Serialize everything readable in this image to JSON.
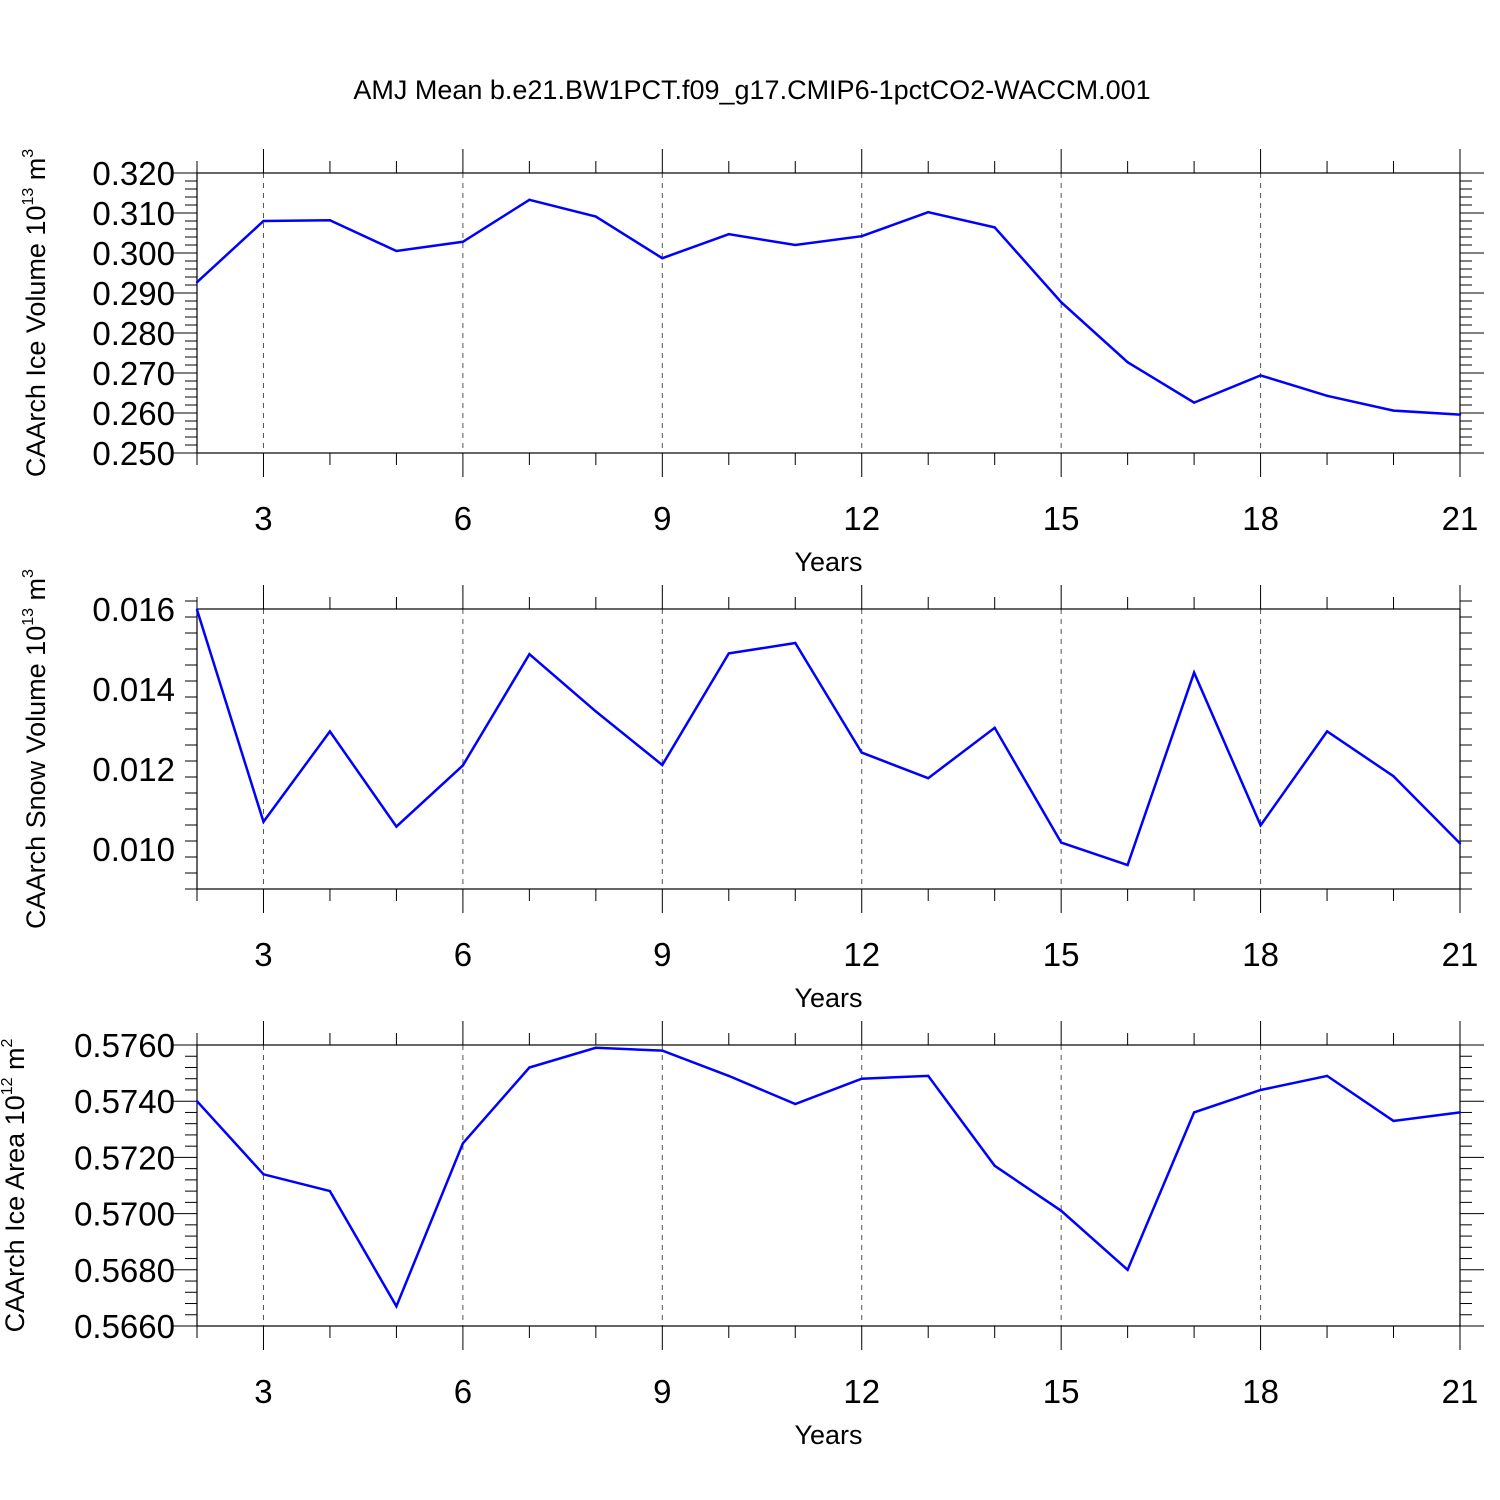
{
  "title": "AMJ Mean b.e21.BW1PCT.f09_g17.CMIP6-1pctCO2-WACCM.001",
  "colors": {
    "series": "#0000ff",
    "axis": "#000000",
    "grid": "#555555"
  },
  "chart_data": [
    {
      "type": "line",
      "ylabel_text": "CAArch Ice Volume 10",
      "ylabel_exp": "13",
      "ylabel_unit": " m",
      "ylabel_unit_exp": "3",
      "xlabel": "Years",
      "xlim": [
        2,
        21
      ],
      "ylim": [
        0.25,
        0.32
      ],
      "x_ticks": [
        "3",
        "6",
        "9",
        "12",
        "15",
        "18",
        "21"
      ],
      "y_ticks": [
        "0.250",
        "0.260",
        "0.270",
        "0.280",
        "0.290",
        "0.300",
        "0.310",
        "0.320"
      ],
      "grid": "dashed vertical at x ticks",
      "x": [
        2,
        3,
        4,
        5,
        6,
        7,
        8,
        9,
        10,
        11,
        12,
        13,
        14,
        15,
        16,
        17,
        18,
        19,
        20,
        21
      ],
      "y": [
        0.2927,
        0.308,
        0.3082,
        0.3005,
        0.3028,
        0.3133,
        0.3091,
        0.2987,
        0.3047,
        0.302,
        0.3042,
        0.3102,
        0.3064,
        0.2877,
        0.2727,
        0.2626,
        0.2694,
        0.2643,
        0.2606,
        0.2596
      ]
    },
    {
      "type": "line",
      "ylabel_text": "CAArch Snow Volume 10",
      "ylabel_exp": "13",
      "ylabel_unit": " m",
      "ylabel_unit_exp": "3",
      "xlabel": "Years",
      "xlim": [
        2,
        21
      ],
      "ylim": [
        0.009,
        0.016
      ],
      "x_ticks": [
        "3",
        "6",
        "9",
        "12",
        "15",
        "18",
        "21"
      ],
      "y_ticks": [
        "0.010",
        "0.012",
        "0.014",
        "0.016"
      ],
      "grid": "dashed vertical at x ticks",
      "x": [
        2,
        3,
        4,
        5,
        6,
        7,
        8,
        9,
        10,
        11,
        12,
        13,
        14,
        15,
        16,
        17,
        18,
        19,
        20,
        21
      ],
      "y": [
        0.01598,
        0.01068,
        0.01294,
        0.01056,
        0.01209,
        0.01487,
        0.01344,
        0.0121,
        0.01489,
        0.01515,
        0.01241,
        0.01177,
        0.01303,
        0.01016,
        0.0096,
        0.01441,
        0.01059,
        0.01294,
        0.01182,
        0.01014
      ]
    },
    {
      "type": "line",
      "ylabel_text": "CAArch Ice Area 10",
      "ylabel_exp": "12",
      "ylabel_unit": " m",
      "ylabel_unit_exp": "2",
      "xlabel": "Years",
      "xlim": [
        2,
        21
      ],
      "ylim": [
        0.566,
        0.576
      ],
      "x_ticks": [
        "3",
        "6",
        "9",
        "12",
        "15",
        "18",
        "21"
      ],
      "y_ticks": [
        "0.5660",
        "0.5680",
        "0.5700",
        "0.5720",
        "0.5740",
        "0.5760"
      ],
      "grid": "dashed vertical at x ticks",
      "x": [
        2,
        3,
        4,
        5,
        6,
        7,
        8,
        9,
        10,
        11,
        12,
        13,
        14,
        15,
        16,
        17,
        18,
        19,
        20,
        21
      ],
      "y": [
        0.574,
        0.5714,
        0.5708,
        0.5667,
        0.5725,
        0.5752,
        0.5759,
        0.5758,
        0.5749,
        0.5739,
        0.5748,
        0.5749,
        0.5717,
        0.5701,
        0.568,
        0.5736,
        0.5744,
        0.5749,
        0.5733,
        0.5736
      ]
    }
  ]
}
